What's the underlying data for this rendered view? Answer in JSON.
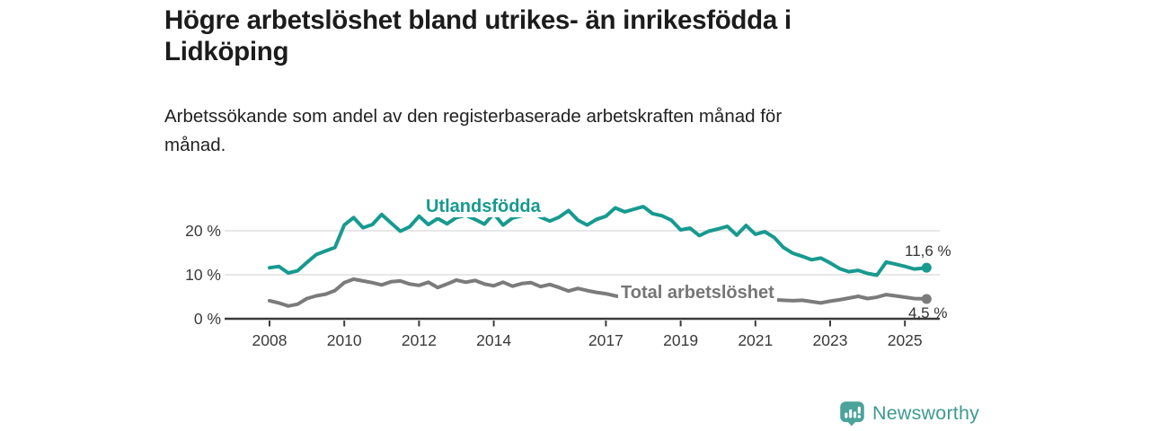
{
  "header": {
    "title_lines": [
      "Högre arbetslöshet bland utrikes- än inrikesfödda i",
      "Lidköping"
    ],
    "subtitle_lines": [
      "Arbetssökande som andel av den registerbaserade arbetskraften månad för",
      "månad."
    ]
  },
  "chart_data": {
    "type": "line",
    "title": "Högre arbetslöshet bland utrikes- än inrikesfödda i Lidköping",
    "subtitle": "Arbetssökande som andel av den registerbaserade arbetskraften månad för månad.",
    "ylabel": "",
    "xlabel": "",
    "ylim": [
      0,
      27
    ],
    "xlim": [
      2007.4,
      2026.2
    ],
    "grid_on": true,
    "grid_color": "#d9d9d9",
    "axis_color": "#3a3a3a",
    "tick_label_color": "#3a3a3a",
    "y_ticks": [
      {
        "label": "0 %",
        "value": 0
      },
      {
        "label": "10 %",
        "value": 10
      },
      {
        "label": "20 %",
        "value": 20
      }
    ],
    "gridline_values": [
      10,
      20
    ],
    "x_ticks": [
      {
        "label": "2008",
        "year": 2008
      },
      {
        "label": "2010",
        "year": 2010
      },
      {
        "label": "2012",
        "year": 2012
      },
      {
        "label": "2014",
        "year": 2014
      },
      {
        "label": "2017",
        "year": 2017
      },
      {
        "label": "2019",
        "year": 2019
      },
      {
        "label": "2021",
        "year": 2021
      },
      {
        "label": "2023",
        "year": 2023
      },
      {
        "label": "2025",
        "year": 2025
      }
    ],
    "x": [
      2008,
      2008.25,
      2008.5,
      2008.75,
      2009,
      2009.25,
      2009.5,
      2009.75,
      2010,
      2010.25,
      2010.5,
      2010.75,
      2011,
      2011.25,
      2011.5,
      2011.75,
      2012,
      2012.25,
      2012.5,
      2012.75,
      2013,
      2013.25,
      2013.5,
      2013.75,
      2014,
      2014.25,
      2014.5,
      2014.75,
      2015,
      2015.25,
      2015.5,
      2015.75,
      2016,
      2016.25,
      2016.5,
      2016.75,
      2017,
      2017.25,
      2017.5,
      2017.75,
      2018,
      2018.25,
      2018.5,
      2018.75,
      2019,
      2019.25,
      2019.5,
      2019.75,
      2020,
      2020.25,
      2020.5,
      2020.75,
      2021,
      2021.25,
      2021.5,
      2021.75,
      2022,
      2022.25,
      2022.5,
      2022.75,
      2023,
      2023.25,
      2023.5,
      2023.75,
      2024,
      2024.25,
      2024.5,
      2024.75,
      2025,
      2025.25,
      2025.58
    ],
    "series": [
      {
        "name": "Utlandsfödda",
        "color": "#179a8f",
        "end_label": "11,6 %",
        "end_value": 11.6,
        "values": [
          11.6,
          11.9,
          10.4,
          10.9,
          12.8,
          14.6,
          15.4,
          16.2,
          21.3,
          23.0,
          20.7,
          21.4,
          23.7,
          21.8,
          19.9,
          20.9,
          23.3,
          21.4,
          22.8,
          21.6,
          23.0,
          23.5,
          22.6,
          21.5,
          23.9,
          21.3,
          22.9,
          23.4,
          24.3,
          23.1,
          22.2,
          23.1,
          24.6,
          22.4,
          21.3,
          22.6,
          23.3,
          25.2,
          24.3,
          24.9,
          25.5,
          23.9,
          23.4,
          22.4,
          20.2,
          20.6,
          18.9,
          19.9,
          20.4,
          21.0,
          19.0,
          21.2,
          19.2,
          19.8,
          18.5,
          16.2,
          14.9,
          14.2,
          13.4,
          13.8,
          12.7,
          11.4,
          10.7,
          11.0,
          10.3,
          9.9,
          12.9,
          12.4,
          11.9,
          11.3,
          11.6
        ]
      },
      {
        "name": "Total arbetslöshet",
        "color": "#7b7b7b",
        "label_color": "#757575",
        "end_label": "4,5 %",
        "end_value": 4.5,
        "values": [
          4.1,
          3.6,
          2.9,
          3.3,
          4.6,
          5.2,
          5.6,
          6.4,
          8.2,
          9.0,
          8.6,
          8.2,
          7.7,
          8.4,
          8.6,
          7.9,
          7.6,
          8.3,
          7.1,
          7.9,
          8.8,
          8.3,
          8.7,
          7.9,
          7.5,
          8.3,
          7.4,
          8.0,
          8.2,
          7.3,
          7.8,
          7.1,
          6.3,
          6.9,
          6.4,
          6.0,
          5.7,
          5.2,
          4.9,
          4.8,
          4.6,
          4.5,
          4.4,
          4.4,
          4.3,
          4.3,
          4.4,
          4.5,
          4.6,
          4.8,
          4.7,
          4.6,
          4.5,
          4.4,
          4.3,
          4.2,
          4.1,
          4.2,
          3.9,
          3.6,
          4.0,
          4.3,
          4.7,
          5.1,
          4.6,
          4.9,
          5.5,
          5.2,
          4.9,
          4.6,
          4.5
        ]
      }
    ]
  },
  "footer": {
    "brand": "Newsworthy",
    "brand_color": "#3f9a92",
    "icon_color": "#4ba39b",
    "icon_glyph_color": "#ffffff"
  }
}
